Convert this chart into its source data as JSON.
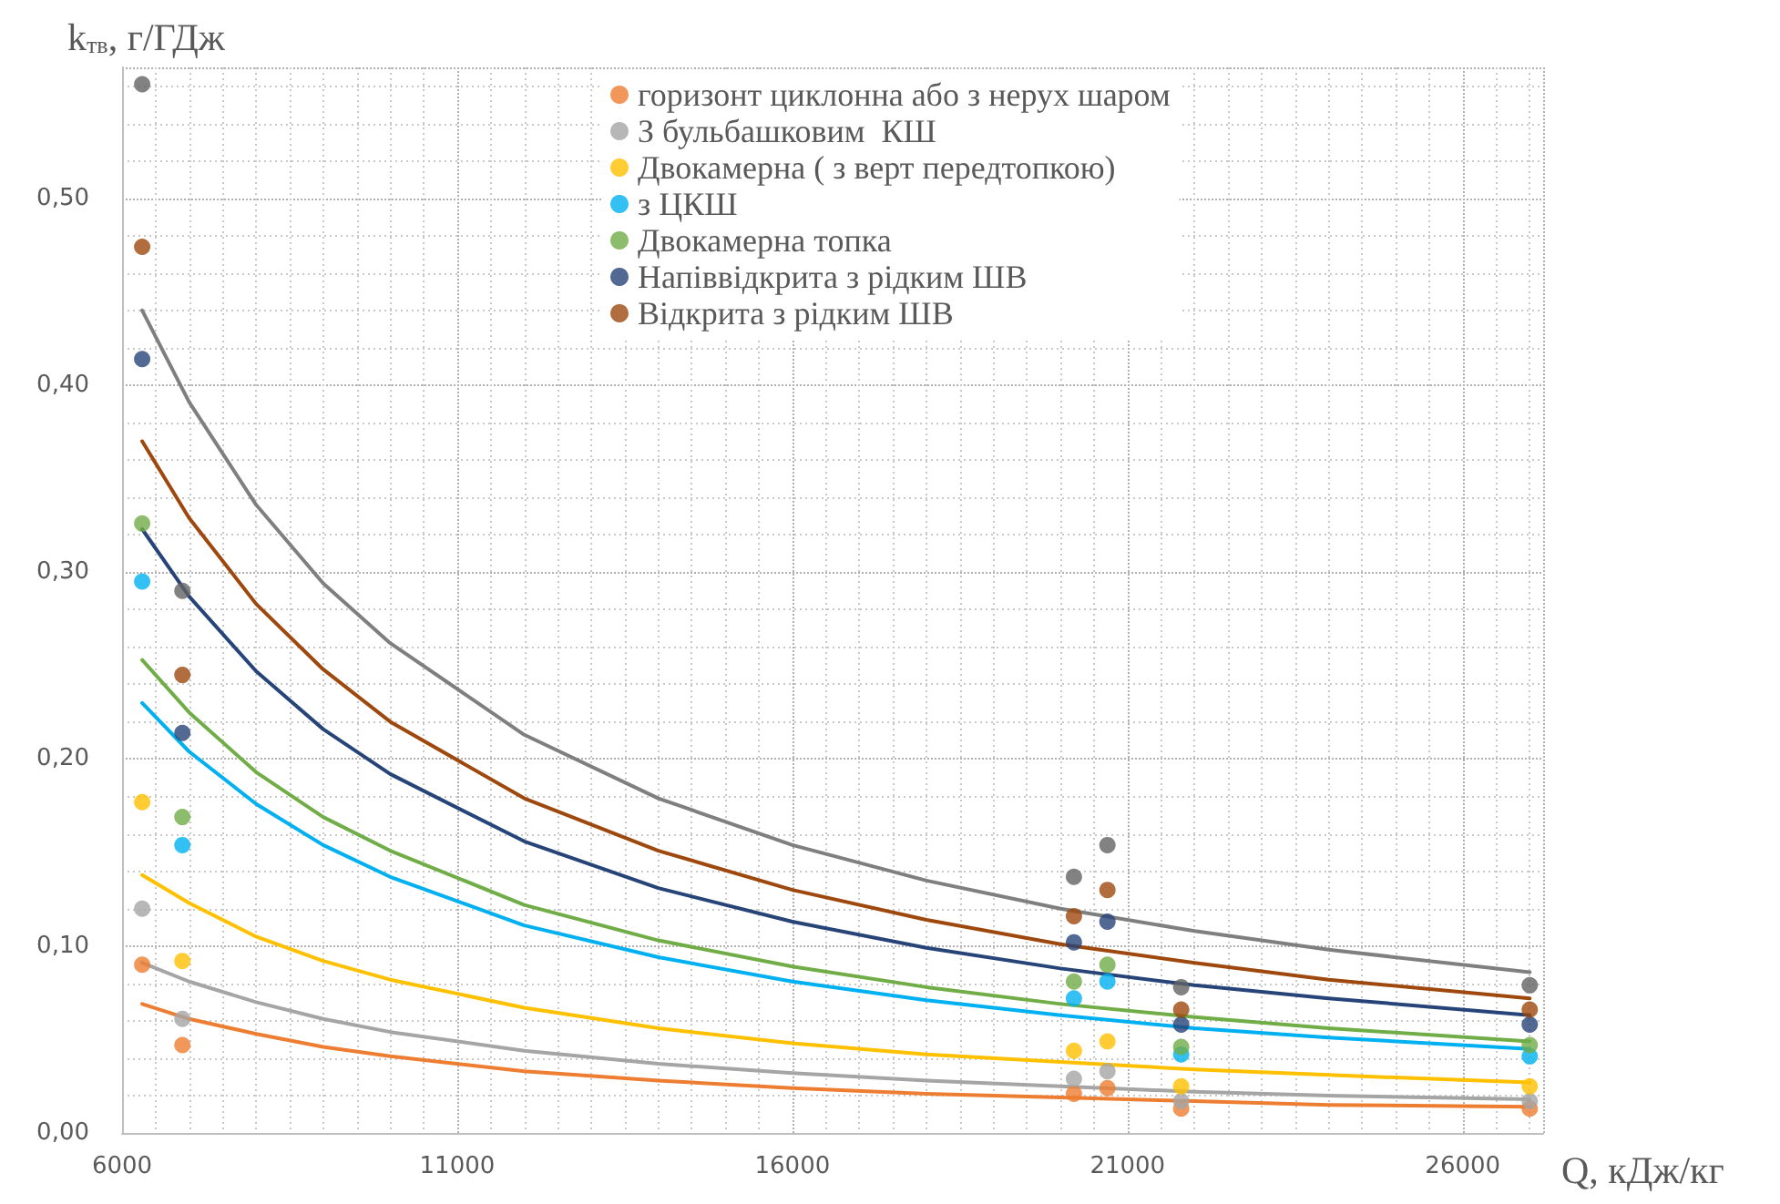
{
  "chart_data": {
    "type": "scatter",
    "ylabel": "k$_{тв}$, г/ГДж",
    "xlabel": "Q, кДж/кг",
    "xlim": [
      6000,
      27200
    ],
    "xticks": [
      6000,
      11000,
      16000,
      21000,
      26000
    ],
    "ylim": [
      0,
      0.57
    ],
    "yticks": [
      {
        "value": 0,
        "label": "0,00"
      },
      {
        "value": 0.1,
        "label": "0,10"
      },
      {
        "value": 0.2,
        "label": "0,20"
      },
      {
        "value": 0.3,
        "label": "0,30"
      },
      {
        "value": 0.4,
        "label": "0,40"
      },
      {
        "value": 0.5,
        "label": "0,50"
      }
    ],
    "grid": true,
    "legend": "top",
    "marker": "circle",
    "series": [
      {
        "name": "горизонт циклонна або з нерух шаром",
        "color": "#ed7d31",
        "x": [
          6300,
          6900,
          20200,
          20700,
          21800,
          27000
        ],
        "values": [
          0.09,
          0.047,
          0.021,
          0.024,
          0.013,
          0.013
        ]
      },
      {
        "name": "З бульбашковим  КШ",
        "color": "#a5a5a5",
        "x": [
          6300,
          6900,
          20200,
          20700,
          21800,
          27000
        ],
        "values": [
          0.12,
          0.061,
          0.029,
          0.033,
          0.017,
          0.017
        ]
      },
      {
        "name": "Двокамерна ( з верт передтопкою)",
        "color": "#ffc000",
        "x": [
          6300,
          6900,
          20200,
          20700,
          21800,
          27000
        ],
        "values": [
          0.177,
          0.092,
          0.044,
          0.049,
          0.025,
          0.025
        ]
      },
      {
        "name": "з ЦКШ",
        "color": "#00b0f0",
        "x": [
          6300,
          6900,
          20200,
          20700,
          21800,
          27000
        ],
        "values": [
          0.295,
          0.154,
          0.072,
          0.081,
          0.042,
          0.041
        ]
      },
      {
        "name": "Двокамерна топка",
        "color": "#70ad47",
        "x": [
          6300,
          6900,
          20200,
          20700,
          21800,
          27000
        ],
        "values": [
          0.326,
          0.169,
          0.081,
          0.09,
          0.046,
          0.047
        ]
      },
      {
        "name": "Напіввідкрита з рідким ШВ",
        "color": "#264478",
        "x": [
          6300,
          6900,
          20200,
          20700,
          21800,
          27000
        ],
        "values": [
          0.414,
          0.214,
          0.102,
          0.113,
          0.058,
          0.058
        ]
      },
      {
        "name": "Відкрита з рідким ШВ",
        "color": "#9e480e",
        "x": [
          6300,
          6900,
          20200,
          20700,
          21800,
          27000
        ],
        "values": [
          0.474,
          0.245,
          0.116,
          0.13,
          0.066,
          0.066
        ]
      },
      {
        "color": "#636363",
        "x": [
          6300,
          6900,
          20200,
          20700,
          21800,
          27000
        ],
        "values": [
          0.561,
          0.29,
          0.137,
          0.154,
          0.078,
          0.079
        ]
      },
      {
        "type": "line",
        "marker": "none",
        "color": "#ed7d31",
        "x": [
          6300,
          7000,
          8000,
          9000,
          10000,
          12000,
          14000,
          16000,
          18000,
          20000,
          22000,
          24000,
          27000
        ],
        "values": [
          0.069,
          0.061,
          0.053,
          0.046,
          0.041,
          0.033,
          0.028,
          0.024,
          0.021,
          0.019,
          0.017,
          0.015,
          0.014
        ]
      },
      {
        "type": "line",
        "marker": "none",
        "color": "#a5a5a5",
        "x": [
          6300,
          7000,
          8000,
          9000,
          10000,
          12000,
          14000,
          16000,
          18000,
          20000,
          22000,
          24000,
          27000
        ],
        "values": [
          0.091,
          0.081,
          0.07,
          0.061,
          0.054,
          0.044,
          0.037,
          0.032,
          0.028,
          0.025,
          0.022,
          0.02,
          0.018
        ]
      },
      {
        "type": "line",
        "marker": "none",
        "color": "#ffc000",
        "x": [
          6300,
          7000,
          8000,
          9000,
          10000,
          12000,
          14000,
          16000,
          18000,
          20000,
          22000,
          24000,
          27000
        ],
        "values": [
          0.138,
          0.123,
          0.105,
          0.092,
          0.082,
          0.067,
          0.056,
          0.048,
          0.042,
          0.038,
          0.034,
          0.031,
          0.027
        ]
      },
      {
        "type": "line",
        "marker": "none",
        "color": "#00b0f0",
        "x": [
          6300,
          7000,
          8000,
          9000,
          10000,
          12000,
          14000,
          16000,
          18000,
          20000,
          22000,
          24000,
          27000
        ],
        "values": [
          0.23,
          0.204,
          0.176,
          0.154,
          0.137,
          0.111,
          0.094,
          0.081,
          0.071,
          0.063,
          0.056,
          0.051,
          0.045
        ]
      },
      {
        "type": "line",
        "marker": "none",
        "color": "#70ad47",
        "x": [
          6300,
          7000,
          8000,
          9000,
          10000,
          12000,
          14000,
          16000,
          18000,
          20000,
          22000,
          24000,
          27000
        ],
        "values": [
          0.253,
          0.225,
          0.193,
          0.169,
          0.151,
          0.122,
          0.103,
          0.089,
          0.078,
          0.069,
          0.062,
          0.056,
          0.049
        ]
      },
      {
        "type": "line",
        "marker": "none",
        "color": "#264478",
        "x": [
          6300,
          7000,
          8000,
          9000,
          10000,
          12000,
          14000,
          16000,
          18000,
          20000,
          22000,
          24000,
          27000
        ],
        "values": [
          0.323,
          0.287,
          0.247,
          0.216,
          0.192,
          0.156,
          0.131,
          0.113,
          0.099,
          0.088,
          0.079,
          0.072,
          0.063
        ]
      },
      {
        "type": "line",
        "marker": "none",
        "color": "#9e480e",
        "x": [
          6300,
          7000,
          8000,
          9000,
          10000,
          12000,
          14000,
          16000,
          18000,
          20000,
          22000,
          24000,
          27000
        ],
        "values": [
          0.37,
          0.329,
          0.283,
          0.248,
          0.22,
          0.179,
          0.151,
          0.13,
          0.114,
          0.101,
          0.091,
          0.082,
          0.072
        ]
      },
      {
        "type": "line",
        "marker": "none",
        "color": "#7f7f7f",
        "x": [
          6300,
          7000,
          8000,
          9000,
          10000,
          12000,
          14000,
          16000,
          18000,
          20000,
          22000,
          24000,
          27000
        ],
        "values": [
          0.44,
          0.391,
          0.336,
          0.294,
          0.262,
          0.213,
          0.179,
          0.154,
          0.135,
          0.12,
          0.108,
          0.098,
          0.086
        ]
      }
    ]
  }
}
